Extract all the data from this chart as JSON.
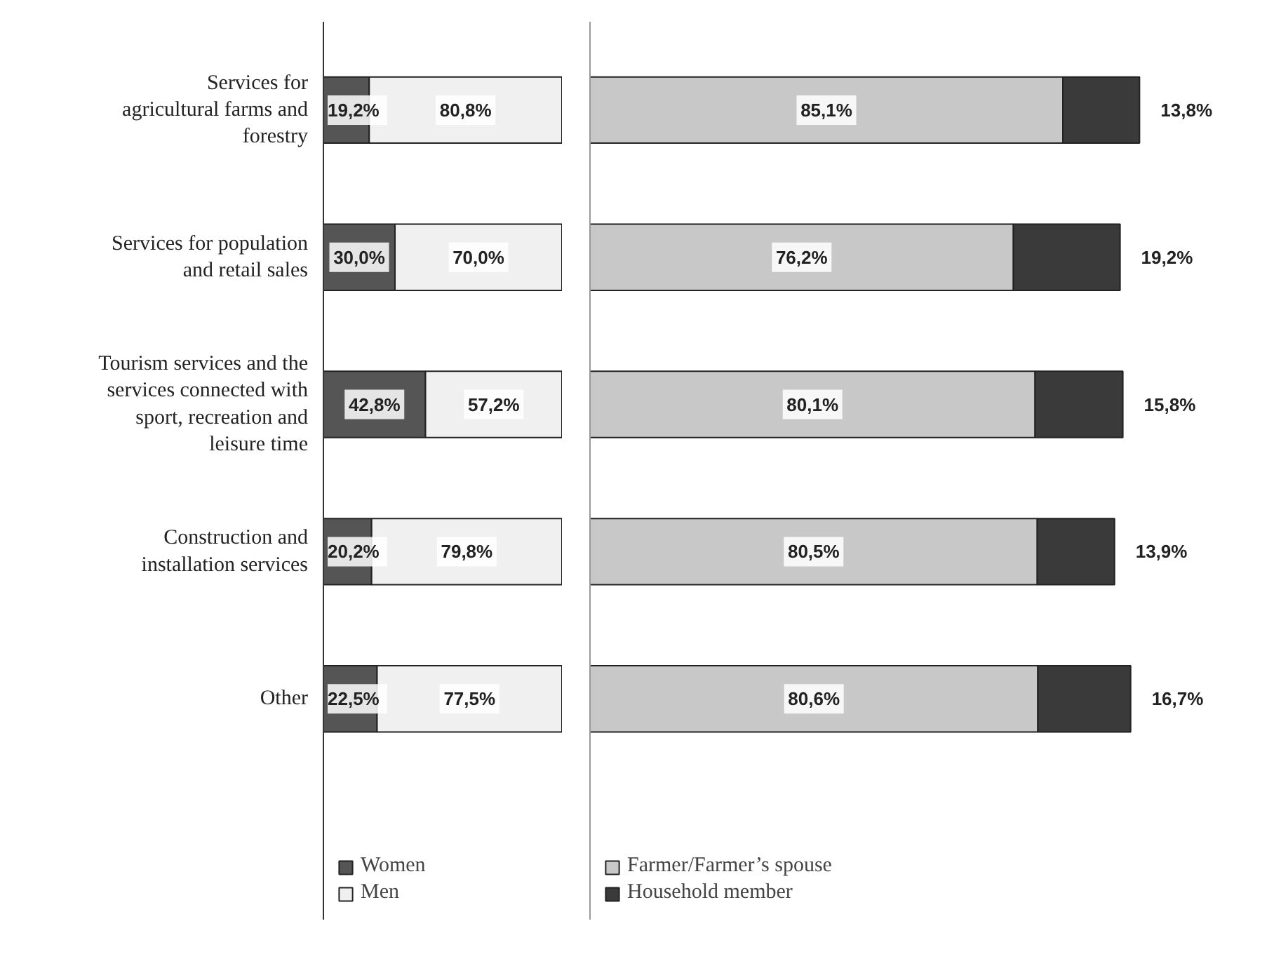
{
  "chart_data": [
    {
      "type": "bar",
      "orientation": "horizontal",
      "stacked": true,
      "categories": [
        "Services for agricultural farms and forestry",
        "Services for population and retail sales",
        "Tourism services and the services connected with sport, recreation and leisure time",
        "Construction and installation services",
        "Other"
      ],
      "series": [
        {
          "name": "Women",
          "color": "#555555",
          "values": [
            19.2,
            30.0,
            42.8,
            20.2,
            22.5
          ],
          "value_labels": [
            "19,2%",
            "30,0%",
            "42,8%",
            "20,2%",
            "22,5%"
          ]
        },
        {
          "name": "Men",
          "color": "#f0f0f0",
          "values": [
            80.8,
            70.0,
            57.2,
            79.8,
            77.5
          ],
          "value_labels": [
            "80,8%",
            "70,0%",
            "57,2%",
            "79,8%",
            "77,5%"
          ]
        }
      ],
      "legend": "bottom",
      "tick_labels": "y"
    },
    {
      "type": "bar",
      "orientation": "horizontal",
      "stacked": true,
      "categories": [
        "Services for agricultural farms and forestry",
        "Services for population and retail sales",
        "Tourism services and the services connected with sport, recreation and leisure time",
        "Construction and installation services",
        "Other"
      ],
      "series": [
        {
          "name": "Farmer/Farmer’s spouse",
          "color": "#c8c8c8",
          "values": [
            85.1,
            76.2,
            80.1,
            80.5,
            80.6
          ],
          "value_labels": [
            "85,1%",
            "76,2%",
            "80,1%",
            "80,5%",
            "80,6%"
          ]
        },
        {
          "name": "Household member",
          "color": "#3a3a3a",
          "values": [
            13.8,
            19.2,
            15.8,
            13.9,
            16.7
          ],
          "value_labels": [
            "13,8%",
            "19,2%",
            "15,8%",
            "13,9%",
            "16,7%"
          ]
        }
      ],
      "legend": "bottom",
      "tick_labels": false
    }
  ]
}
